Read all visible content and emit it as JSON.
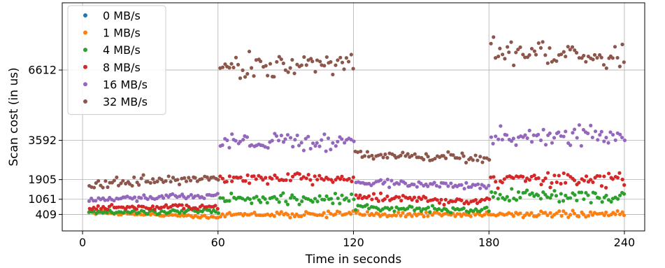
{
  "chart_data": {
    "type": "scatter",
    "title": "",
    "xlabel": "Time in seconds",
    "ylabel": "Scan cost (in us)",
    "xlim": [
      -9,
      249
    ],
    "ylim": [
      -300,
      9500
    ],
    "xticks": [
      0,
      60,
      120,
      180,
      240
    ],
    "yticks": [
      409,
      1061,
      1905,
      3592,
      6612
    ],
    "grid": true,
    "legend_position": "top-left",
    "series": [
      {
        "name": "0 MB/s",
        "color": "#1f77b4",
        "phases": []
      },
      {
        "name": "1 MB/s",
        "color": "#ff7f0e",
        "phases": [
          {
            "x": [
              3,
              60
            ],
            "start": 500,
            "end": 300,
            "noise": 60
          },
          {
            "x": [
              61,
              240
            ],
            "start": 409,
            "end": 409,
            "noise": 110
          }
        ]
      },
      {
        "name": "4 MB/s",
        "color": "#2ca02c",
        "phases": [
          {
            "x": [
              3,
              60
            ],
            "start": 500,
            "end": 560,
            "noise": 90
          },
          {
            "x": [
              61,
              120
            ],
            "start": 1061,
            "end": 1061,
            "noise": 220
          },
          {
            "x": [
              121,
              180
            ],
            "start": 700,
            "end": 600,
            "noise": 110
          },
          {
            "x": [
              181,
              240
            ],
            "start": 1250,
            "end": 1150,
            "noise": 230
          }
        ]
      },
      {
        "name": "8 MB/s",
        "color": "#d62728",
        "phases": [
          {
            "x": [
              3,
              60
            ],
            "start": 700,
            "end": 750,
            "noise": 100
          },
          {
            "x": [
              61,
              120
            ],
            "start": 1905,
            "end": 2000,
            "noise": 220
          },
          {
            "x": [
              121,
              180
            ],
            "start": 1150,
            "end": 950,
            "noise": 140
          },
          {
            "x": [
              181,
              240
            ],
            "start": 1950,
            "end": 1900,
            "noise": 280
          }
        ]
      },
      {
        "name": "16 MB/s",
        "color": "#9467bd",
        "phases": [
          {
            "x": [
              3,
              60
            ],
            "start": 1000,
            "end": 1250,
            "noise": 110
          },
          {
            "x": [
              61,
              120
            ],
            "start": 3592,
            "end": 3500,
            "noise": 380
          },
          {
            "x": [
              121,
              180
            ],
            "start": 1800,
            "end": 1600,
            "noise": 140
          },
          {
            "x": [
              181,
              240
            ],
            "start": 3750,
            "end": 3800,
            "noise": 330
          }
        ]
      },
      {
        "name": "32 MB/s",
        "color": "#8c564b",
        "phases": [
          {
            "x": [
              3,
              60
            ],
            "start": 1700,
            "end": 2000,
            "noise": 200
          },
          {
            "x": [
              61,
              120
            ],
            "start": 6700,
            "end": 6900,
            "noise": 450
          },
          {
            "x": [
              121,
              180
            ],
            "start": 3000,
            "end": 2800,
            "noise": 160
          },
          {
            "x": [
              181,
              240
            ],
            "start": 7500,
            "end": 7100,
            "noise": 500
          }
        ]
      }
    ]
  }
}
